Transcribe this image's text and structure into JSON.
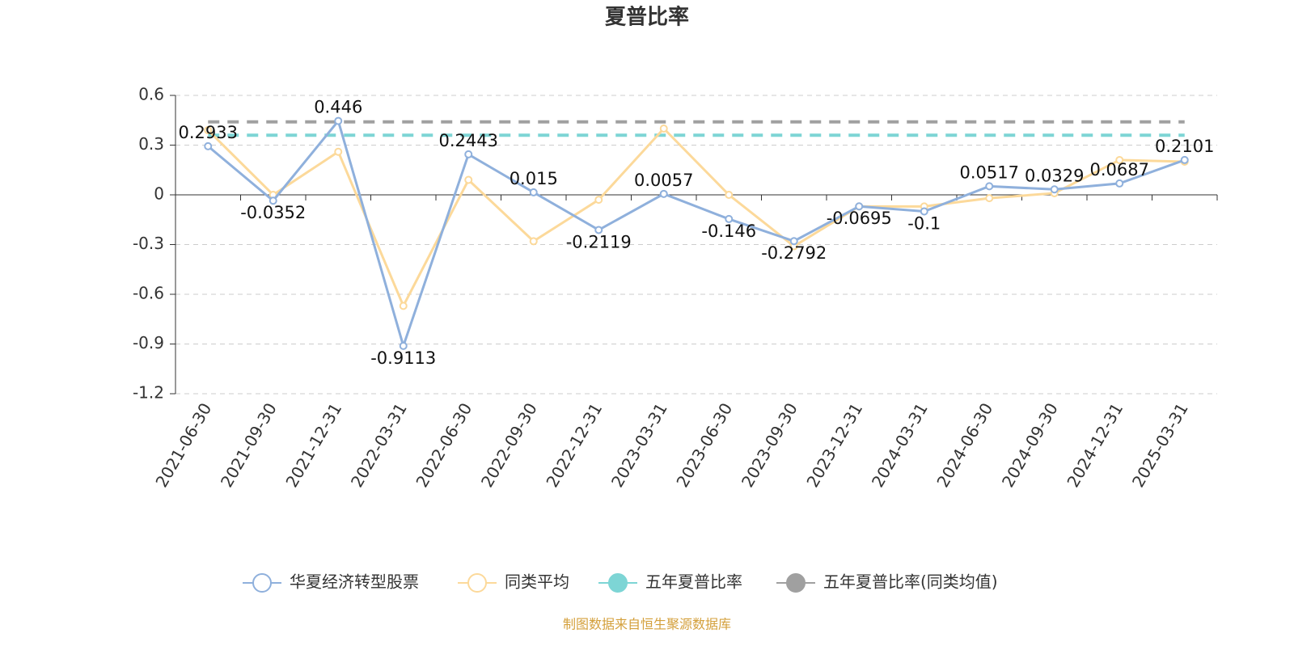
{
  "chart_data": {
    "type": "line",
    "title": "夏普比率",
    "categories": [
      "2021-06-30",
      "2021-09-30",
      "2021-12-31",
      "2022-03-31",
      "2022-06-30",
      "2022-09-30",
      "2022-12-31",
      "2023-03-31",
      "2023-06-30",
      "2023-09-30",
      "2023-12-31",
      "2024-03-31",
      "2024-06-30",
      "2024-09-30",
      "2024-12-31",
      "2025-03-31"
    ],
    "series": [
      {
        "name": "华夏经济转型股票",
        "color": "#8fb0dc",
        "values": [
          0.2933,
          -0.0352,
          0.446,
          -0.9113,
          0.2443,
          0.015,
          -0.2119,
          0.0057,
          -0.146,
          -0.2792,
          -0.0695,
          -0.1,
          0.0517,
          0.0329,
          0.0687,
          0.2101
        ]
      },
      {
        "name": "同类平均",
        "color": "#fcd99a",
        "values": [
          0.39,
          0.0,
          0.26,
          -0.67,
          0.09,
          -0.28,
          -0.03,
          0.4,
          0.0,
          -0.31,
          -0.07,
          -0.07,
          -0.02,
          0.01,
          0.21,
          0.2
        ]
      },
      {
        "name": "五年夏普比率",
        "color": "#7dd5d5",
        "values": [
          0.36,
          0.36,
          0.36,
          0.36,
          0.36,
          0.36,
          0.36,
          0.36,
          0.36,
          0.36,
          0.36,
          0.36,
          0.36,
          0.36,
          0.36,
          0.36
        ]
      },
      {
        "name": "五年夏普比率(同类均值)",
        "color": "#a0a0a0",
        "values": [
          0.44,
          0.44,
          0.44,
          0.44,
          0.44,
          0.44,
          0.44,
          0.44,
          0.44,
          0.44,
          0.44,
          0.44,
          0.44,
          0.44,
          0.44,
          0.44
        ]
      }
    ],
    "ylim": [
      -1.2,
      0.6
    ],
    "yticks": [
      -1.2,
      -0.9,
      -0.6,
      -0.3,
      0,
      0.3,
      0.6
    ],
    "grid": true,
    "source": "制图数据来自恒生聚源数据库"
  }
}
